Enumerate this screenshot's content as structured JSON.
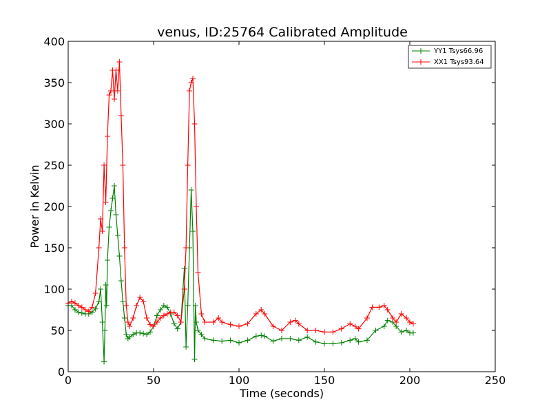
{
  "chart_data": {
    "type": "line",
    "title": "venus, ID:25764 Calibrated Amplitude",
    "xlabel": "Time (seconds)",
    "ylabel": "Power in Kelvin",
    "xlim": [
      0,
      250
    ],
    "ylim": [
      0,
      400
    ],
    "xticks": [
      "0",
      "50",
      "100",
      "150",
      "200",
      "250"
    ],
    "yticks": [
      "0",
      "50",
      "100",
      "150",
      "200",
      "250",
      "300",
      "350",
      "400"
    ],
    "grid": false,
    "legend_position": "top-right",
    "marker": "plus",
    "series": [
      {
        "name": "YY1 Tsys66.96",
        "color": "#008000",
        "x": [
          0,
          2,
          4,
          6,
          8,
          10,
          12,
          14,
          16,
          18,
          19,
          20,
          21,
          21.5,
          22,
          22.5,
          23,
          24,
          25,
          26,
          27,
          28,
          29,
          30,
          31,
          32,
          33,
          34,
          35,
          36,
          38,
          40,
          42,
          44,
          46,
          48,
          50,
          52,
          54,
          56,
          58,
          60,
          62,
          64,
          66,
          68,
          69,
          70,
          71,
          72,
          73,
          74,
          74.5,
          75,
          76,
          78,
          80,
          85,
          90,
          95,
          100,
          105,
          110,
          113,
          115,
          120,
          125,
          130,
          135,
          140,
          145,
          150,
          155,
          160,
          165,
          168,
          170,
          175,
          180,
          185,
          187,
          190,
          192,
          195,
          198,
          200,
          202
        ],
        "y": [
          80,
          80,
          75,
          72,
          71,
          70,
          70,
          72,
          76,
          85,
          100,
          60,
          12,
          50,
          105,
          80,
          135,
          175,
          195,
          210,
          225,
          190,
          165,
          140,
          110,
          85,
          65,
          45,
          40,
          42,
          45,
          47,
          47,
          46,
          45,
          48,
          55,
          68,
          75,
          80,
          78,
          70,
          58,
          52,
          60,
          125,
          30,
          80,
          150,
          220,
          170,
          15,
          80,
          60,
          50,
          45,
          40,
          38,
          37,
          38,
          35,
          38,
          43,
          44,
          43,
          37,
          40,
          40,
          38,
          42,
          36,
          34,
          34,
          35,
          38,
          40,
          36,
          38,
          50,
          55,
          62,
          60,
          55,
          48,
          50,
          47,
          47
        ]
      },
      {
        "name": "XX1 Tsys93.64",
        "color": "#ff0000",
        "x": [
          0,
          2,
          4,
          6,
          8,
          10,
          12,
          14,
          16,
          18,
          19,
          20,
          21,
          22,
          23,
          24,
          25,
          26,
          27,
          28,
          29,
          30,
          31,
          32,
          33,
          34,
          35,
          36,
          38,
          40,
          42,
          44,
          46,
          48,
          50,
          52,
          54,
          56,
          58,
          60,
          62,
          64,
          66,
          68,
          69,
          70,
          71,
          72,
          73,
          74,
          75,
          76,
          78,
          80,
          85,
          88,
          90,
          95,
          100,
          105,
          110,
          113,
          115,
          120,
          125,
          130,
          133,
          135,
          140,
          145,
          150,
          155,
          160,
          165,
          168,
          170,
          175,
          178,
          182,
          185,
          187,
          190,
          192,
          195,
          198,
          200,
          202
        ],
        "y": [
          83,
          85,
          83,
          80,
          78,
          75,
          73,
          78,
          95,
          150,
          185,
          170,
          250,
          205,
          285,
          335,
          340,
          365,
          330,
          365,
          340,
          375,
          310,
          250,
          150,
          80,
          60,
          55,
          65,
          80,
          90,
          85,
          65,
          57,
          55,
          60,
          65,
          68,
          70,
          72,
          72,
          68,
          60,
          100,
          150,
          250,
          340,
          350,
          355,
          300,
          200,
          120,
          70,
          60,
          60,
          65,
          60,
          57,
          55,
          58,
          70,
          75,
          70,
          55,
          50,
          60,
          62,
          58,
          50,
          50,
          48,
          48,
          52,
          58,
          55,
          52,
          65,
          78,
          78,
          80,
          75,
          65,
          60,
          70,
          65,
          60,
          58
        ]
      }
    ]
  }
}
